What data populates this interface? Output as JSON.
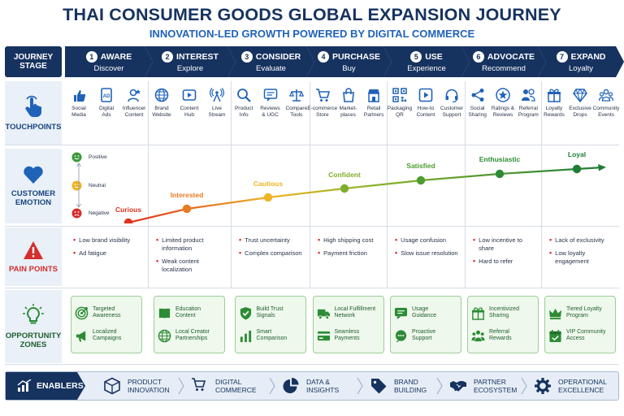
{
  "title": "THAI CONSUMER GOODS GLOBAL EXPANSION JOURNEY",
  "subtitle": "INNOVATION-LED GROWTH POWERED BY DIGITAL COMMERCE",
  "row_labels": {
    "stage": [
      "JOURNEY",
      "STAGE"
    ],
    "touchpoints": "TOUCHPOINTS",
    "emotion": [
      "CUSTOMER",
      "EMOTION"
    ],
    "pain": "PAIN POINTS",
    "opportunity": [
      "OPPORTUNITY",
      "ZONES"
    ]
  },
  "stages": [
    {
      "num": "1",
      "name": "AWARE",
      "sub": "Discover"
    },
    {
      "num": "2",
      "name": "INTEREST",
      "sub": "Explore"
    },
    {
      "num": "3",
      "name": "CONSIDER",
      "sub": "Evaluate"
    },
    {
      "num": "4",
      "name": "PURCHASE",
      "sub": "Buy"
    },
    {
      "num": "5",
      "name": "USE",
      "sub": "Experience"
    },
    {
      "num": "6",
      "name": "ADVOCATE",
      "sub": "Recommend"
    },
    {
      "num": "7",
      "name": "EXPAND",
      "sub": "Loyalty"
    }
  ],
  "touchpoints": [
    [
      {
        "icon": "thumbs-up-icon",
        "label": "Social\nMedia"
      },
      {
        "icon": "digital-ad-icon",
        "label": "Digital\nAds"
      },
      {
        "icon": "influencer-icon",
        "label": "Influencer\nContent"
      }
    ],
    [
      {
        "icon": "globe-icon",
        "label": "Brand\nWebsite"
      },
      {
        "icon": "play-icon",
        "label": "Content\nHub"
      },
      {
        "icon": "broadcast-icon",
        "label": "Live\nStream"
      }
    ],
    [
      {
        "icon": "magnifier-icon",
        "label": "Product\nInfo"
      },
      {
        "icon": "review-icon",
        "label": "Reviews\n& UGC"
      },
      {
        "icon": "scale-icon",
        "label": "Compare\nTools"
      }
    ],
    [
      {
        "icon": "cart-icon",
        "label": "E-commerce\nStore"
      },
      {
        "icon": "bag-icon",
        "label": "Market-\nplaces"
      },
      {
        "icon": "store-icon",
        "label": "Retail\nPartners"
      }
    ],
    [
      {
        "icon": "qr-icon",
        "label": "Packaging\nQR"
      },
      {
        "icon": "video-icon",
        "label": "How-to\nContent"
      },
      {
        "icon": "headset-icon",
        "label": "Customer\nSupport"
      }
    ],
    [
      {
        "icon": "share-icon",
        "label": "Social\nSharing"
      },
      {
        "icon": "star-icon",
        "label": "Ratings &\nReviews"
      },
      {
        "icon": "referral-icon",
        "label": "Referral\nProgram"
      }
    ],
    [
      {
        "icon": "gift-icon",
        "label": "Loyalty\nRewards"
      },
      {
        "icon": "diamond-icon",
        "label": "Exclusive\nDrops"
      },
      {
        "icon": "community-icon",
        "label": "Community\nEvents"
      }
    ]
  ],
  "emotion": {
    "legend": {
      "positive": "Positive",
      "neutral": "Neutral",
      "negative": "Negative"
    },
    "levels": [
      {
        "label": "Curious",
        "color": "#e0321f"
      },
      {
        "label": "Interested",
        "color": "#ea7a21"
      },
      {
        "label": "Cautious",
        "color": "#f0b324"
      },
      {
        "label": "Confident",
        "color": "#7fae2a"
      },
      {
        "label": "Satisfied",
        "color": "#4c9c2e"
      },
      {
        "label": "Enthusiastic",
        "color": "#2c8b34"
      },
      {
        "label": "Loyal",
        "color": "#1f7d35"
      }
    ]
  },
  "pain_points": [
    [
      "Low brand visibility",
      "Ad fatigue"
    ],
    [
      "Limited product information",
      "Weak content localization"
    ],
    [
      "Trust uncertainty",
      "Complex comparison"
    ],
    [
      "High shipping cost",
      "Payment friction"
    ],
    [
      "Usage confusion",
      "Slow issue resolution"
    ],
    [
      "Low incentive to share",
      "Hard to refer"
    ],
    [
      "Lack of exclusivity",
      "Low loyalty engagement"
    ]
  ],
  "opportunities": [
    [
      {
        "icon": "target-icon",
        "text": "Targeted\nAwareness"
      },
      {
        "icon": "megaphone-icon",
        "text": "Localized\nCampaigns"
      }
    ],
    [
      {
        "icon": "book-icon",
        "text": "Education\nContent"
      },
      {
        "icon": "globe-icon",
        "text": "Local Creator\nPartnerships"
      }
    ],
    [
      {
        "icon": "shield-check-icon",
        "text": "Build Trust\nSignals"
      },
      {
        "icon": "bar-chart-icon",
        "text": "Smart\nComparison"
      }
    ],
    [
      {
        "icon": "truck-icon",
        "text": "Local Fulfillment\nNetwork"
      },
      {
        "icon": "credit-card-icon",
        "text": "Seamless\nPayments"
      }
    ],
    [
      {
        "icon": "chat-icon",
        "text": "Usage\nGuidance"
      },
      {
        "icon": "support-chat-icon",
        "text": "Proactive\nSupport"
      }
    ],
    [
      {
        "icon": "gift-icon",
        "text": "Incentivized\nSharing"
      },
      {
        "icon": "people-icon",
        "text": "Referral\nRewards"
      }
    ],
    [
      {
        "icon": "crown-icon",
        "text": "Tiered Loyalty\nProgram"
      },
      {
        "icon": "calendar-check-icon",
        "text": "VIP Community\nAccess"
      }
    ]
  ],
  "enablers": {
    "label": "ENABLERS",
    "items": [
      {
        "icon": "cube-icon",
        "text": "PRODUCT\nINNOVATION"
      },
      {
        "icon": "cart-icon",
        "text": "DIGITAL\nCOMMERCE"
      },
      {
        "icon": "pie-icon",
        "text": "DATA &\nINSIGHTS"
      },
      {
        "icon": "tag-icon",
        "text": "BRAND\nBUILDING"
      },
      {
        "icon": "handshake-icon",
        "text": "PARTNER\nECOSYSTEM"
      },
      {
        "icon": "gear-icon",
        "text": "OPERATIONAL\nEXCELLENCE"
      }
    ]
  },
  "colors": {
    "navy": "#16325f",
    "blue": "#1f63b8",
    "red": "#d62d2d",
    "green": "#2c8b34"
  }
}
